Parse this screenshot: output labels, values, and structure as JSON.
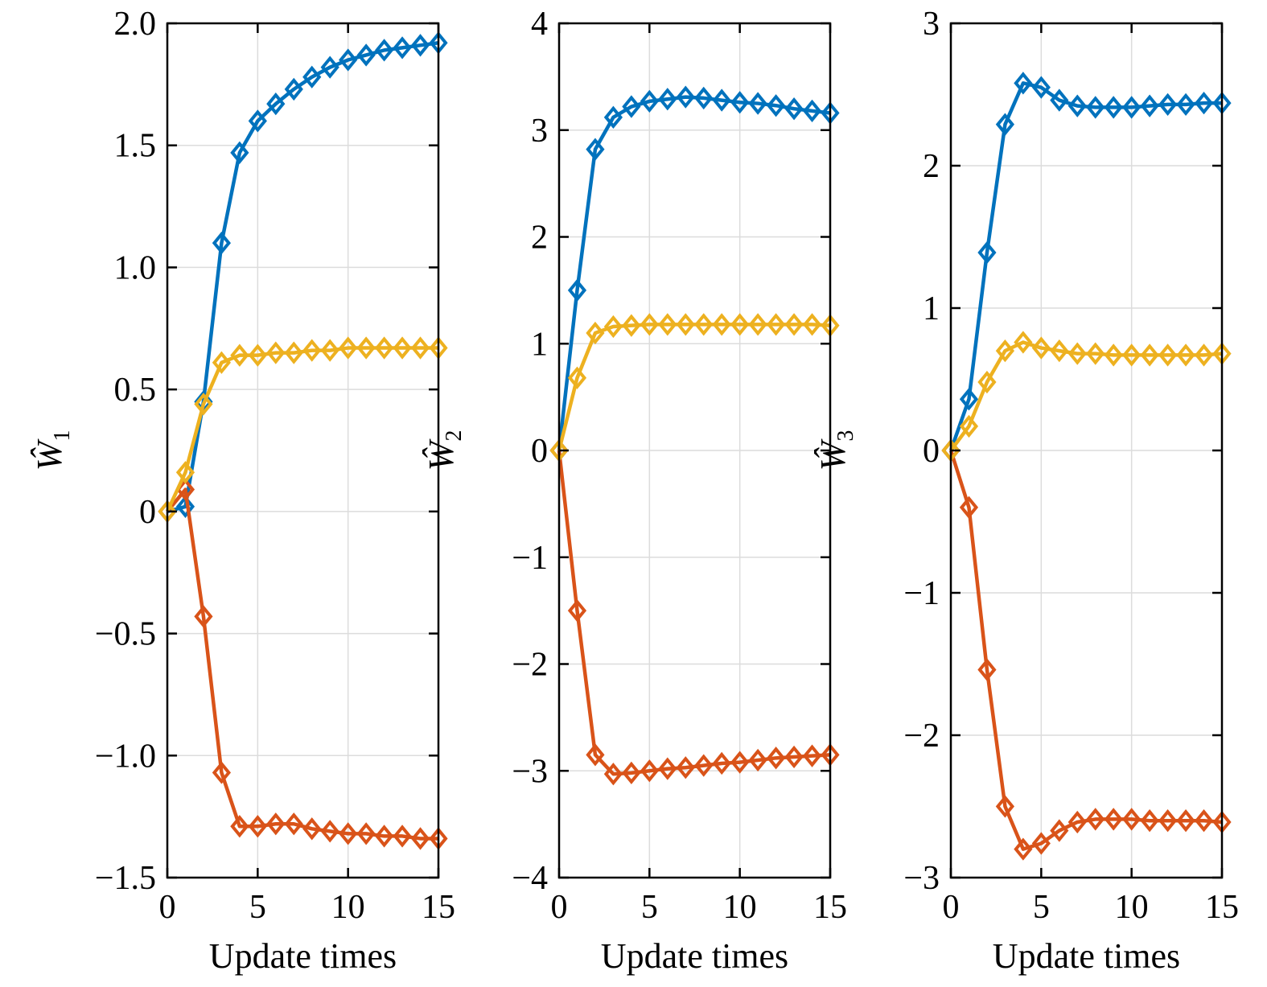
{
  "colors": {
    "blue": "#0072BD",
    "orange": "#D95319",
    "yellow": "#EDB120",
    "grid": "#dcdcdc",
    "axis": "#000000"
  },
  "chart_data": [
    {
      "type": "line",
      "marker": "diamond",
      "xlabel": "Update times",
      "ylabel": {
        "symbol": "Ŵ",
        "subscript": "1"
      },
      "xlim": [
        0,
        15
      ],
      "ylim": [
        -1.5,
        2.0
      ],
      "xticks": [
        0,
        5,
        10,
        15
      ],
      "xtick_labels": [
        "0",
        "5",
        "10",
        "15"
      ],
      "yticks": [
        -1.5,
        -1.0,
        -0.5,
        0,
        0.5,
        1.0,
        1.5,
        2.0
      ],
      "ytick_labels": [
        "−1.5",
        "−1.0",
        "−0.5",
        "0",
        "0.5",
        "1.0",
        "1.5",
        "2.0"
      ],
      "grid": true,
      "x": [
        0,
        1,
        2,
        3,
        4,
        5,
        6,
        7,
        8,
        9,
        10,
        11,
        12,
        13,
        14,
        15
      ],
      "series": [
        {
          "color": "blue",
          "values": [
            0,
            0.02,
            0.45,
            1.1,
            1.47,
            1.6,
            1.67,
            1.73,
            1.78,
            1.82,
            1.85,
            1.87,
            1.89,
            1.9,
            1.91,
            1.92
          ]
        },
        {
          "color": "orange",
          "values": [
            0,
            0.09,
            -0.43,
            -1.07,
            -1.29,
            -1.29,
            -1.28,
            -1.28,
            -1.3,
            -1.31,
            -1.32,
            -1.32,
            -1.33,
            -1.33,
            -1.34,
            -1.34
          ]
        },
        {
          "color": "yellow",
          "values": [
            0,
            0.16,
            0.44,
            0.61,
            0.64,
            0.64,
            0.65,
            0.65,
            0.66,
            0.66,
            0.67,
            0.67,
            0.67,
            0.67,
            0.67,
            0.67
          ]
        }
      ]
    },
    {
      "type": "line",
      "marker": "diamond",
      "xlabel": "Update times",
      "ylabel": {
        "symbol": "Ŵ",
        "subscript": "2"
      },
      "xlim": [
        0,
        15
      ],
      "ylim": [
        -4,
        4
      ],
      "xticks": [
        0,
        5,
        10,
        15
      ],
      "xtick_labels": [
        "0",
        "5",
        "10",
        "15"
      ],
      "yticks": [
        -4,
        -3,
        -2,
        -1,
        0,
        1,
        2,
        3,
        4
      ],
      "ytick_labels": [
        "−4",
        "−3",
        "−2",
        "−1",
        "0",
        "1",
        "2",
        "3",
        "4"
      ],
      "grid": true,
      "x": [
        0,
        1,
        2,
        3,
        4,
        5,
        6,
        7,
        8,
        9,
        10,
        11,
        12,
        13,
        14,
        15
      ],
      "series": [
        {
          "color": "blue",
          "values": [
            0,
            1.5,
            2.82,
            3.12,
            3.22,
            3.27,
            3.29,
            3.31,
            3.3,
            3.28,
            3.26,
            3.25,
            3.23,
            3.2,
            3.18,
            3.16
          ]
        },
        {
          "color": "orange",
          "values": [
            0,
            -1.5,
            -2.85,
            -3.03,
            -3.02,
            -3.0,
            -2.98,
            -2.97,
            -2.95,
            -2.93,
            -2.92,
            -2.9,
            -2.88,
            -2.87,
            -2.86,
            -2.85
          ]
        },
        {
          "color": "yellow",
          "values": [
            0,
            0.68,
            1.1,
            1.16,
            1.17,
            1.18,
            1.18,
            1.18,
            1.18,
            1.18,
            1.18,
            1.18,
            1.18,
            1.18,
            1.18,
            1.17
          ]
        }
      ]
    },
    {
      "type": "line",
      "marker": "diamond",
      "xlabel": "Update times",
      "ylabel": {
        "symbol": "Ŵ",
        "subscript": "3"
      },
      "xlim": [
        0,
        15
      ],
      "ylim": [
        -3,
        3
      ],
      "xticks": [
        0,
        5,
        10,
        15
      ],
      "xtick_labels": [
        "0",
        "5",
        "10",
        "15"
      ],
      "yticks": [
        -3,
        -2,
        -1,
        0,
        1,
        2,
        3
      ],
      "ytick_labels": [
        "−3",
        "−2",
        "−1",
        "0",
        "1",
        "2",
        "3"
      ],
      "grid": true,
      "x": [
        0,
        1,
        2,
        3,
        4,
        5,
        6,
        7,
        8,
        9,
        10,
        11,
        12,
        13,
        14,
        15
      ],
      "series": [
        {
          "color": "blue",
          "values": [
            0,
            0.36,
            1.39,
            2.29,
            2.58,
            2.55,
            2.46,
            2.42,
            2.41,
            2.41,
            2.41,
            2.42,
            2.43,
            2.43,
            2.44,
            2.44
          ]
        },
        {
          "color": "orange",
          "values": [
            0,
            -0.4,
            -1.54,
            -2.5,
            -2.8,
            -2.76,
            -2.67,
            -2.61,
            -2.59,
            -2.59,
            -2.59,
            -2.6,
            -2.6,
            -2.6,
            -2.6,
            -2.61
          ]
        },
        {
          "color": "yellow",
          "values": [
            0,
            0.17,
            0.48,
            0.7,
            0.76,
            0.72,
            0.7,
            0.68,
            0.68,
            0.67,
            0.67,
            0.67,
            0.67,
            0.67,
            0.67,
            0.68
          ]
        }
      ]
    }
  ]
}
